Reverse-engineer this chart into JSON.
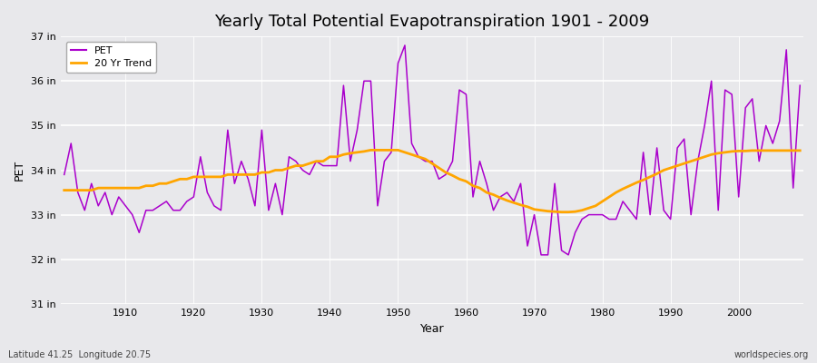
{
  "title": "Yearly Total Potential Evapotranspiration 1901 - 2009",
  "ylabel": "PET",
  "xlabel": "Year",
  "footer_left": "Latitude 41.25  Longitude 20.75",
  "footer_right": "worldspecies.org",
  "ylim": [
    31,
    37
  ],
  "yticks": [
    31,
    32,
    33,
    34,
    35,
    36,
    37
  ],
  "ytick_labels": [
    "31 in",
    "32 in",
    "33 in",
    "34 in",
    "35 in",
    "36 in",
    "37 in"
  ],
  "pet_color": "#AA00CC",
  "trend_color": "#FFA500",
  "bg_color": "#E8E8EB",
  "plot_bg_color": "#E8E8EB",
  "grid_color": "#FFFFFF",
  "years": [
    1901,
    1902,
    1903,
    1904,
    1905,
    1906,
    1907,
    1908,
    1909,
    1910,
    1911,
    1912,
    1913,
    1914,
    1915,
    1916,
    1917,
    1918,
    1919,
    1920,
    1921,
    1922,
    1923,
    1924,
    1925,
    1926,
    1927,
    1928,
    1929,
    1930,
    1931,
    1932,
    1933,
    1934,
    1935,
    1936,
    1937,
    1938,
    1939,
    1940,
    1941,
    1942,
    1943,
    1944,
    1945,
    1946,
    1947,
    1948,
    1949,
    1950,
    1951,
    1952,
    1953,
    1954,
    1955,
    1956,
    1957,
    1958,
    1959,
    1960,
    1961,
    1962,
    1963,
    1964,
    1965,
    1966,
    1967,
    1968,
    1969,
    1970,
    1971,
    1972,
    1973,
    1974,
    1975,
    1976,
    1977,
    1978,
    1979,
    1980,
    1981,
    1982,
    1983,
    1984,
    1985,
    1986,
    1987,
    1988,
    1989,
    1990,
    1991,
    1992,
    1993,
    1994,
    1995,
    1996,
    1997,
    1998,
    1999,
    2000,
    2001,
    2002,
    2003,
    2004,
    2005,
    2006,
    2007,
    2008,
    2009
  ],
  "pet": [
    33.9,
    34.6,
    33.5,
    33.1,
    33.7,
    33.2,
    33.5,
    33.0,
    33.4,
    33.2,
    33.0,
    32.6,
    33.1,
    33.1,
    33.2,
    33.3,
    33.1,
    33.1,
    33.3,
    33.4,
    34.3,
    33.5,
    33.2,
    33.1,
    34.9,
    33.7,
    34.2,
    33.8,
    33.2,
    34.9,
    33.1,
    33.7,
    33.0,
    34.3,
    34.2,
    34.0,
    33.9,
    34.2,
    34.1,
    34.1,
    34.1,
    35.9,
    34.2,
    34.9,
    36.0,
    36.0,
    33.2,
    34.2,
    34.4,
    36.4,
    36.8,
    34.6,
    34.3,
    34.2,
    34.2,
    33.8,
    33.9,
    34.2,
    35.8,
    35.7,
    33.4,
    34.2,
    33.7,
    33.1,
    33.4,
    33.5,
    33.3,
    33.7,
    32.3,
    33.0,
    32.1,
    32.1,
    33.7,
    32.2,
    32.1,
    32.6,
    32.9,
    33.0,
    33.0,
    33.0,
    32.9,
    32.9,
    33.3,
    33.1,
    32.9,
    34.4,
    33.0,
    34.5,
    33.1,
    32.9,
    34.5,
    34.7,
    33.0,
    34.2,
    35.0,
    36.0,
    33.1,
    35.8,
    35.7,
    33.4,
    35.4,
    35.6,
    34.2,
    35.0,
    34.6,
    35.1,
    36.7,
    33.6,
    35.9
  ],
  "trend": [
    33.55,
    33.55,
    33.55,
    33.55,
    33.55,
    33.6,
    33.6,
    33.6,
    33.6,
    33.6,
    33.6,
    33.6,
    33.65,
    33.65,
    33.7,
    33.7,
    33.75,
    33.8,
    33.8,
    33.85,
    33.85,
    33.85,
    33.85,
    33.85,
    33.9,
    33.9,
    33.9,
    33.9,
    33.9,
    33.95,
    33.95,
    34.0,
    34.0,
    34.05,
    34.1,
    34.1,
    34.15,
    34.2,
    34.2,
    34.3,
    34.3,
    34.35,
    34.38,
    34.4,
    34.42,
    34.45,
    34.45,
    34.45,
    34.45,
    34.45,
    34.4,
    34.35,
    34.3,
    34.25,
    34.15,
    34.05,
    33.95,
    33.88,
    33.8,
    33.75,
    33.65,
    33.6,
    33.5,
    33.45,
    33.38,
    33.32,
    33.27,
    33.22,
    33.18,
    33.12,
    33.1,
    33.08,
    33.07,
    33.06,
    33.06,
    33.07,
    33.1,
    33.15,
    33.2,
    33.3,
    33.4,
    33.5,
    33.58,
    33.65,
    33.72,
    33.78,
    33.85,
    33.92,
    34.0,
    34.05,
    34.1,
    34.15,
    34.2,
    34.25,
    34.3,
    34.35,
    34.38,
    34.4,
    34.42,
    34.43,
    34.43,
    34.44,
    34.44,
    34.44,
    34.44,
    34.44,
    34.44,
    34.44,
    34.44
  ]
}
